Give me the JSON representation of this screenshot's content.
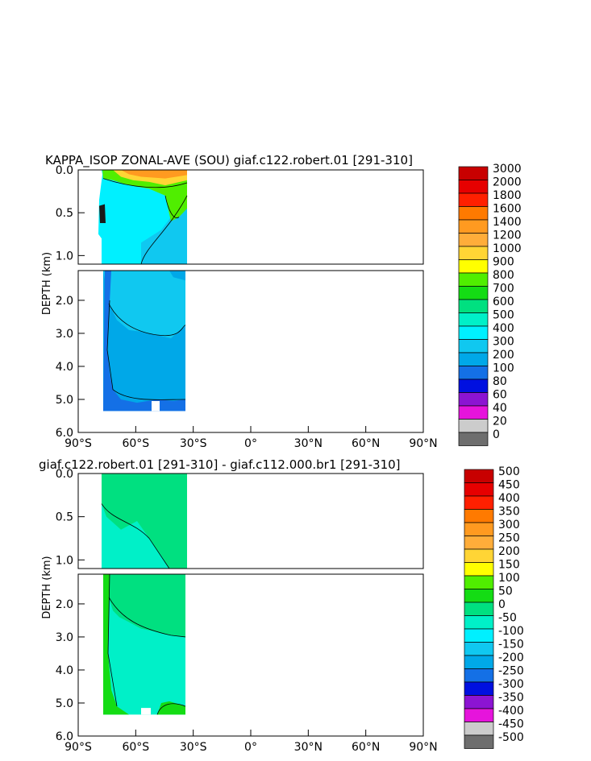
{
  "chart_data": [
    {
      "type": "heatmap",
      "title": "KAPPA_ISOP ZONAL-AVE (SOU) giaf.c122.robert.01 [291-310]",
      "ylabel": "DEPTH (km)",
      "x_tick_labels": [
        "90°S",
        "60°S",
        "30°S",
        "0°",
        "30°N",
        "60°N",
        "90°N"
      ],
      "y_tick_labels_upper": [
        "0.0",
        "0.5",
        "1.0"
      ],
      "y_tick_labels_lower": [
        "2.0",
        "3.0",
        "4.0",
        "5.0",
        "6.0"
      ],
      "colorbar_labels": [
        "3000",
        "2000",
        "1800",
        "1600",
        "1400",
        "1200",
        "1000",
        "900",
        "800",
        "700",
        "600",
        "500",
        "400",
        "300",
        "200",
        "100",
        "80",
        "60",
        "40",
        "20",
        "0"
      ],
      "colorbar_colors": [
        "#c80000",
        "#e60000",
        "#ff2000",
        "#ff7a00",
        "#ff9a20",
        "#ffad3a",
        "#ffd535",
        "#ffff00",
        "#50ee00",
        "#14dc14",
        "#00e080",
        "#00f0c8",
        "#00f0ff",
        "#10c8f0",
        "#00a8e8",
        "#1470e6",
        "#0010e0",
        "#8c14d2",
        "#e614dc",
        "#cccccc",
        "#6e6e6e"
      ],
      "fields": {
        "deep_interior": "#10c8f0",
        "abyssal": "#00a8e8",
        "bottom": "#1470e6",
        "upper_shelf": "#00f0ff",
        "surface_green": "#50ee00",
        "surface_orange": "#ff9a20",
        "surface_yellow": "#ffd535",
        "dark_patch": "#1a1a1a"
      }
    },
    {
      "type": "heatmap",
      "title": "giaf.c122.robert.01 [291-310] - giaf.c112.000.br1 [291-310]",
      "ylabel": "DEPTH (km)",
      "x_tick_labels": [
        "90°S",
        "60°S",
        "30°S",
        "0°",
        "30°N",
        "60°N",
        "90°N"
      ],
      "y_tick_labels_upper": [
        "0.0",
        "0.5",
        "1.0"
      ],
      "y_tick_labels_lower": [
        "2.0",
        "3.0",
        "4.0",
        "5.0",
        "6.0"
      ],
      "colorbar_labels": [
        "500",
        "450",
        "400",
        "350",
        "300",
        "250",
        "200",
        "150",
        "100",
        "50",
        "0",
        "-50",
        "-100",
        "-150",
        "-200",
        "-250",
        "-300",
        "-350",
        "-400",
        "-450",
        "-500"
      ],
      "colorbar_colors": [
        "#c80000",
        "#e60000",
        "#ff2000",
        "#ff7a00",
        "#ff9a20",
        "#ffad3a",
        "#ffd535",
        "#ffff00",
        "#50ee00",
        "#14dc14",
        "#00e080",
        "#00f0c8",
        "#00f0ff",
        "#10c8f0",
        "#00a8e8",
        "#1470e6",
        "#0010e0",
        "#8c14d2",
        "#e614dc",
        "#cccccc",
        "#6e6e6e"
      ],
      "fields": {
        "positive": "#00e080",
        "negative": "#00f0c8",
        "light_positive": "#14dc14"
      }
    }
  ]
}
